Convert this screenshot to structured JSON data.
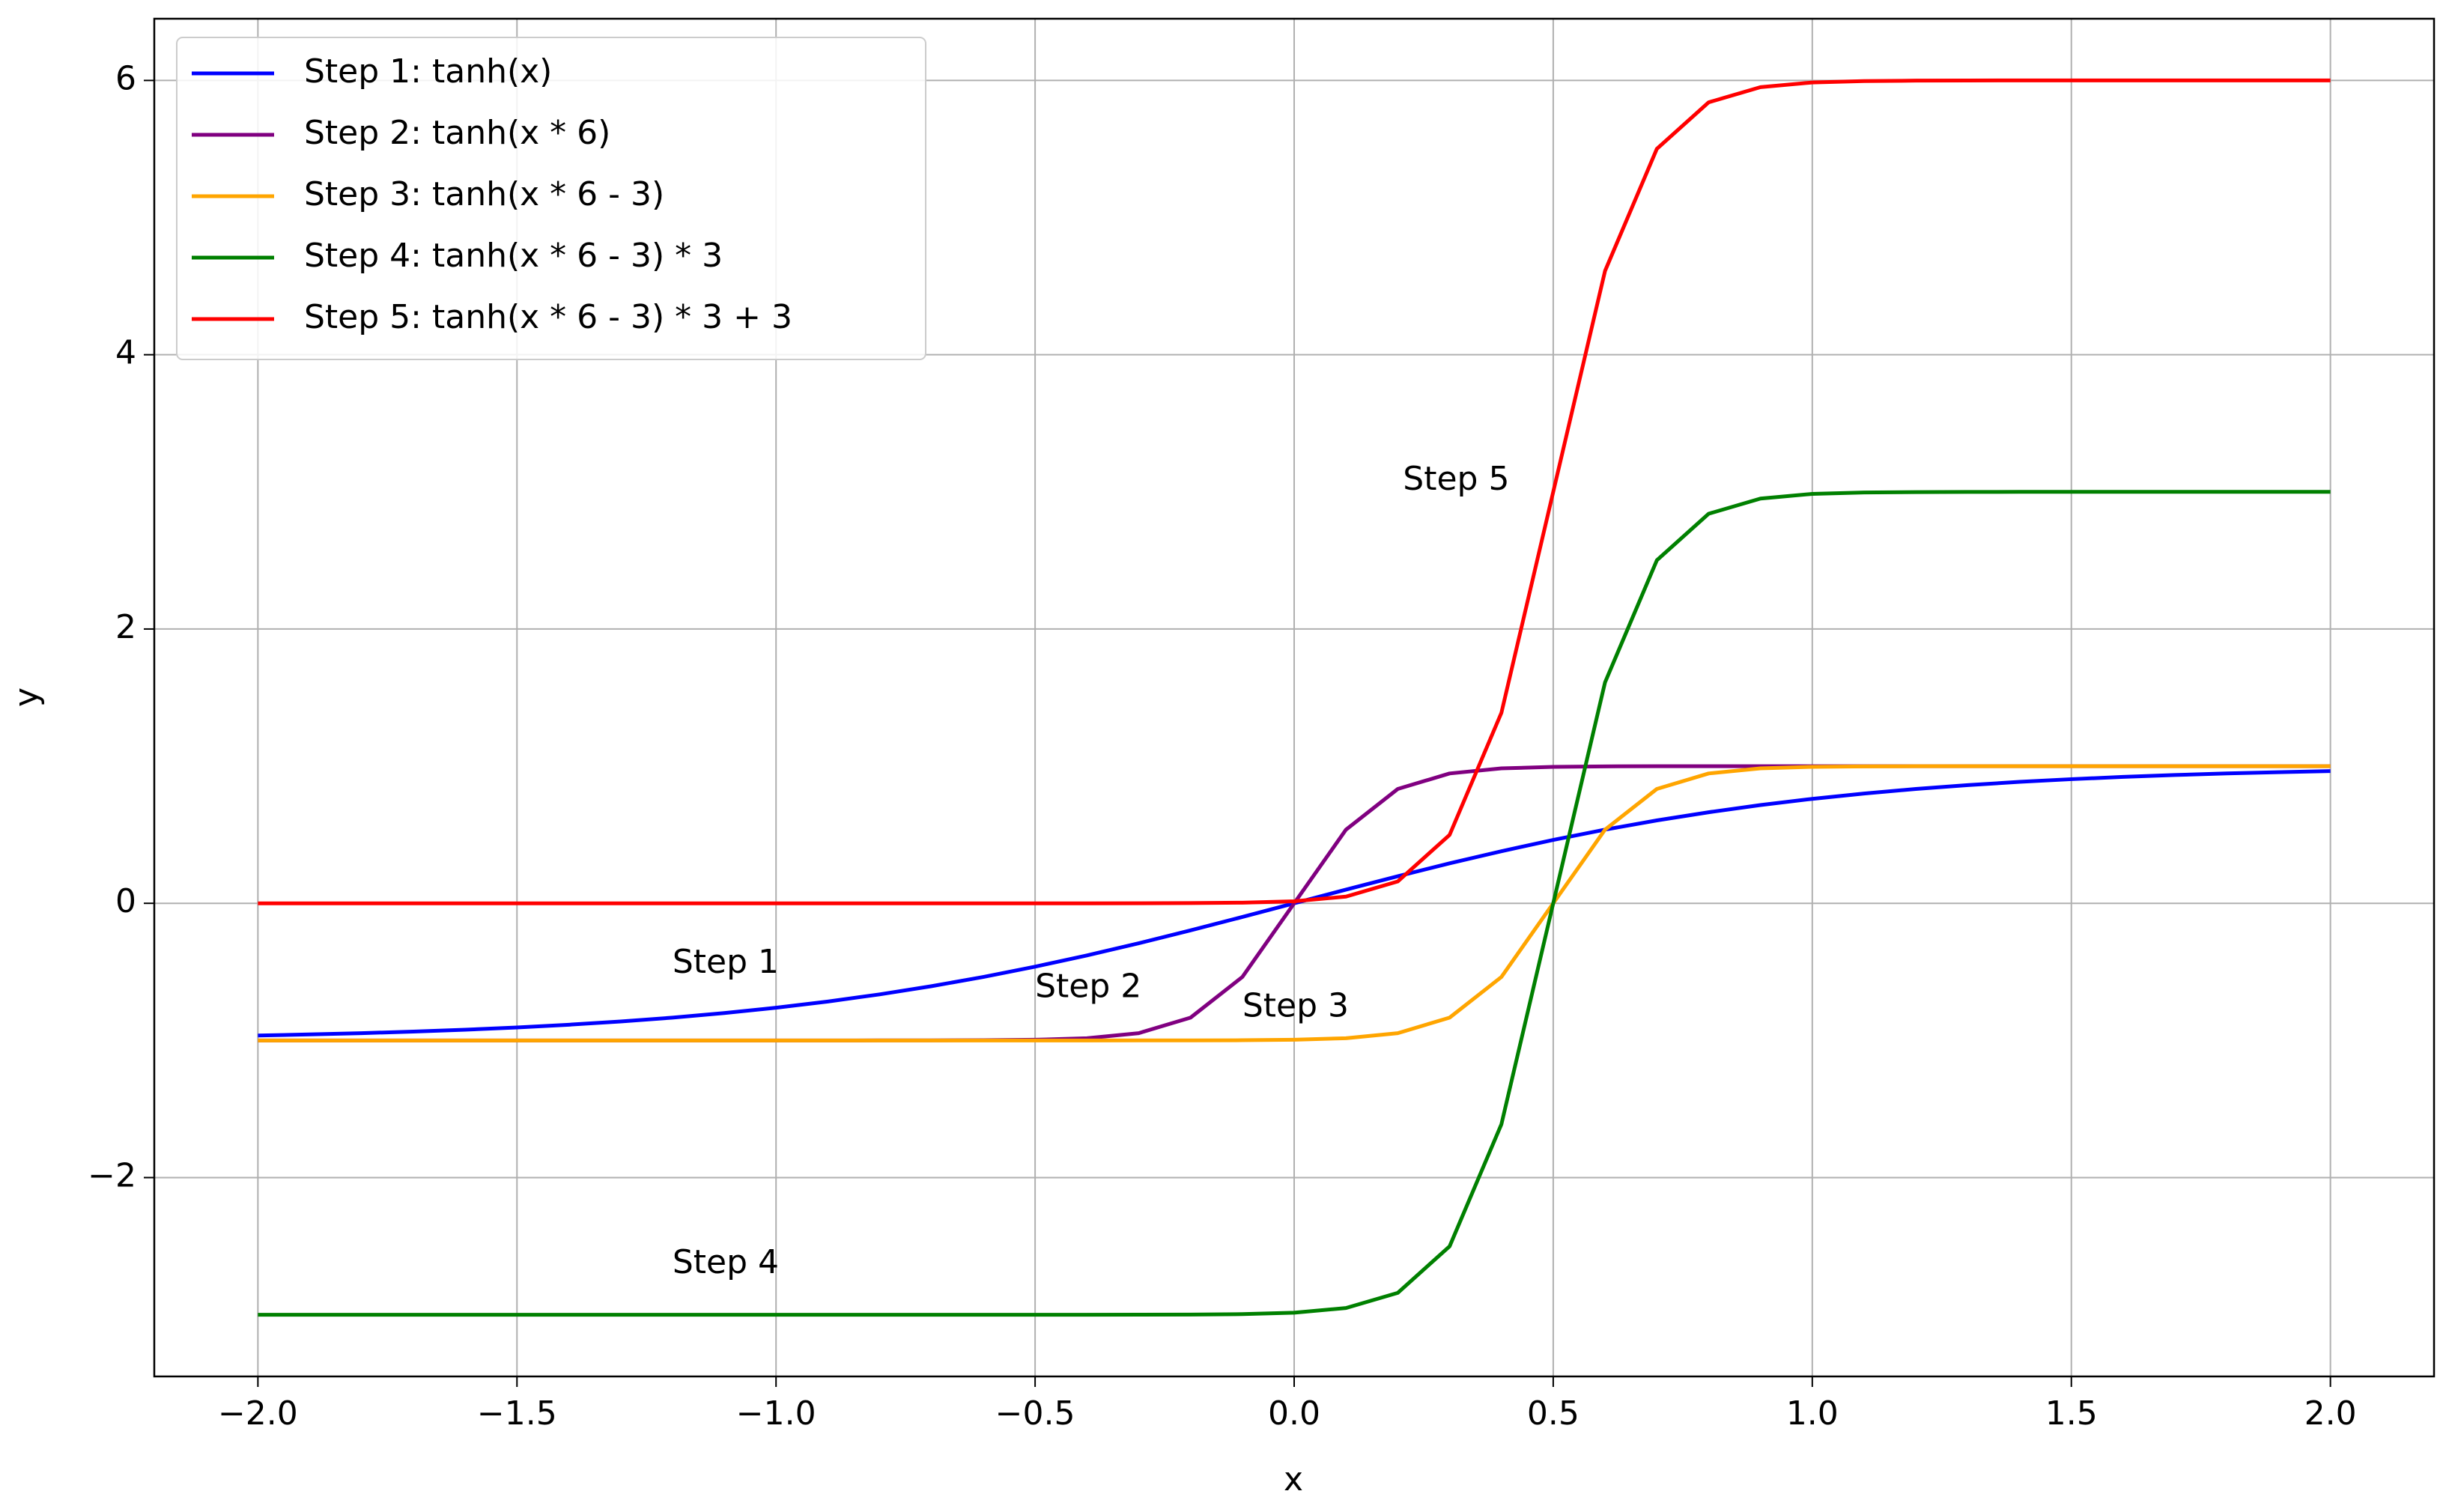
{
  "chart_data": {
    "type": "line",
    "xlabel": "x",
    "ylabel": "y",
    "grid": true,
    "legend": "upper left",
    "xlim": [
      -2.2,
      2.2
    ],
    "ylim": [
      -3.45,
      6.45
    ],
    "xticks": [
      {
        "value": -2,
        "label": "−2.0"
      },
      {
        "value": -1.5,
        "label": "−1.5"
      },
      {
        "value": -1,
        "label": "−1.0"
      },
      {
        "value": -0.5,
        "label": "−0.5"
      },
      {
        "value": 0,
        "label": "0.0"
      },
      0.5,
      {
        "value": 1,
        "label": "1.0"
      },
      1.5,
      {
        "value": 2,
        "label": "2.0"
      }
    ],
    "yticks": [
      {
        "value": -2,
        "label": "−2"
      },
      0,
      2,
      4,
      6
    ],
    "x": [
      -2,
      -1.9,
      -1.8,
      -1.7,
      -1.6,
      -1.5,
      -1.4,
      -1.3,
      -1.2,
      -1.1,
      -1,
      -0.9,
      -0.8,
      -0.7,
      -0.6,
      -0.5,
      -0.4,
      -0.3,
      -0.2,
      -0.1,
      0,
      0.1,
      0.2,
      0.3,
      0.4,
      0.5,
      0.6,
      0.7,
      0.8,
      0.9,
      1,
      1.1,
      1.2,
      1.3,
      1.4,
      1.5,
      1.6,
      1.7,
      1.8,
      1.9,
      2
    ],
    "series": [
      {
        "name": "Step 1: tanh(x)",
        "color": "#0000ff",
        "values": [
          -0.964,
          -0.9562,
          -0.9468,
          -0.9354,
          -0.9217,
          -0.9051,
          -0.8854,
          -0.8617,
          -0.8337,
          -0.8005,
          -0.7616,
          -0.7163,
          -0.664,
          -0.6044,
          -0.537,
          -0.4621,
          -0.3799,
          -0.2913,
          -0.1974,
          -0.0997,
          0,
          0.0997,
          0.1974,
          0.2913,
          0.3799,
          0.4621,
          0.537,
          0.6044,
          0.664,
          0.7163,
          0.7616,
          0.8005,
          0.8337,
          0.8617,
          0.8854,
          0.9051,
          0.9217,
          0.9354,
          0.9468,
          0.9562,
          0.964
        ]
      },
      {
        "name": "Step 2: tanh(x * 6)",
        "color": "#800080",
        "values": [
          -1,
          -1,
          -1,
          -1,
          -1,
          -1,
          -1,
          -1,
          -1,
          -1,
          -1,
          -1,
          -0.9999,
          -0.9995,
          -0.9985,
          -0.9951,
          -0.9837,
          -0.9468,
          -0.8337,
          -0.537,
          0,
          0.537,
          0.8337,
          0.9468,
          0.9837,
          0.9951,
          0.9985,
          0.9995,
          0.9999,
          1,
          1,
          1,
          1,
          1,
          1,
          1,
          1,
          1,
          1,
          1,
          1
        ]
      },
      {
        "name": "Step 3: tanh(x * 6 - 3)",
        "color": "#ffa500",
        "values": [
          -1,
          -1,
          -1,
          -1,
          -1,
          -1,
          -1,
          -1,
          -1,
          -1,
          -1,
          -1,
          -1,
          -1,
          -1,
          -1,
          -1,
          -0.9999,
          -0.9995,
          -0.9985,
          -0.9951,
          -0.9837,
          -0.9468,
          -0.8337,
          -0.537,
          0,
          0.537,
          0.8337,
          0.9468,
          0.9837,
          0.9951,
          0.9985,
          0.9995,
          0.9999,
          1,
          1,
          1,
          1,
          1,
          1,
          1
        ]
      },
      {
        "name": "Step 4: tanh(x * 6 - 3) * 3",
        "color": "#008000",
        "values": [
          -3,
          -3,
          -3,
          -3,
          -3,
          -3,
          -3,
          -3,
          -3,
          -3,
          -3,
          -3,
          -3,
          -3,
          -3,
          -3,
          -3,
          -2.9997,
          -2.9985,
          -2.9955,
          -2.9853,
          -2.9511,
          -2.8404,
          -2.5011,
          -1.611,
          0,
          1.611,
          2.5011,
          2.8404,
          2.9511,
          2.9853,
          2.9955,
          2.9985,
          2.9997,
          3,
          3,
          3,
          3,
          3,
          3,
          3
        ]
      },
      {
        "name": "Step 5: tanh(x * 6 - 3) * 3 + 3",
        "color": "#ff0000",
        "values": [
          0,
          0,
          0,
          0,
          0,
          0,
          0,
          0,
          0,
          0,
          0,
          0,
          0,
          0,
          0,
          0,
          0,
          0.0003,
          0.0015,
          0.0045,
          0.0147,
          0.0489,
          0.1596,
          0.4989,
          1.389,
          3,
          4.611,
          5.5011,
          5.8404,
          5.9511,
          5.9853,
          5.9955,
          5.9985,
          5.9997,
          6,
          6,
          6,
          6,
          6,
          6,
          6
        ]
      }
    ],
    "annotations": [
      {
        "text": "Step 1",
        "color": "#0000ff"
      },
      {
        "text": "Step 2",
        "color": "#800080"
      },
      {
        "text": "Step 3",
        "color": "#ffa500"
      },
      {
        "text": "Step 4",
        "color": "#008000"
      },
      {
        "text": "Step 5",
        "color": "#ff0000"
      }
    ]
  }
}
